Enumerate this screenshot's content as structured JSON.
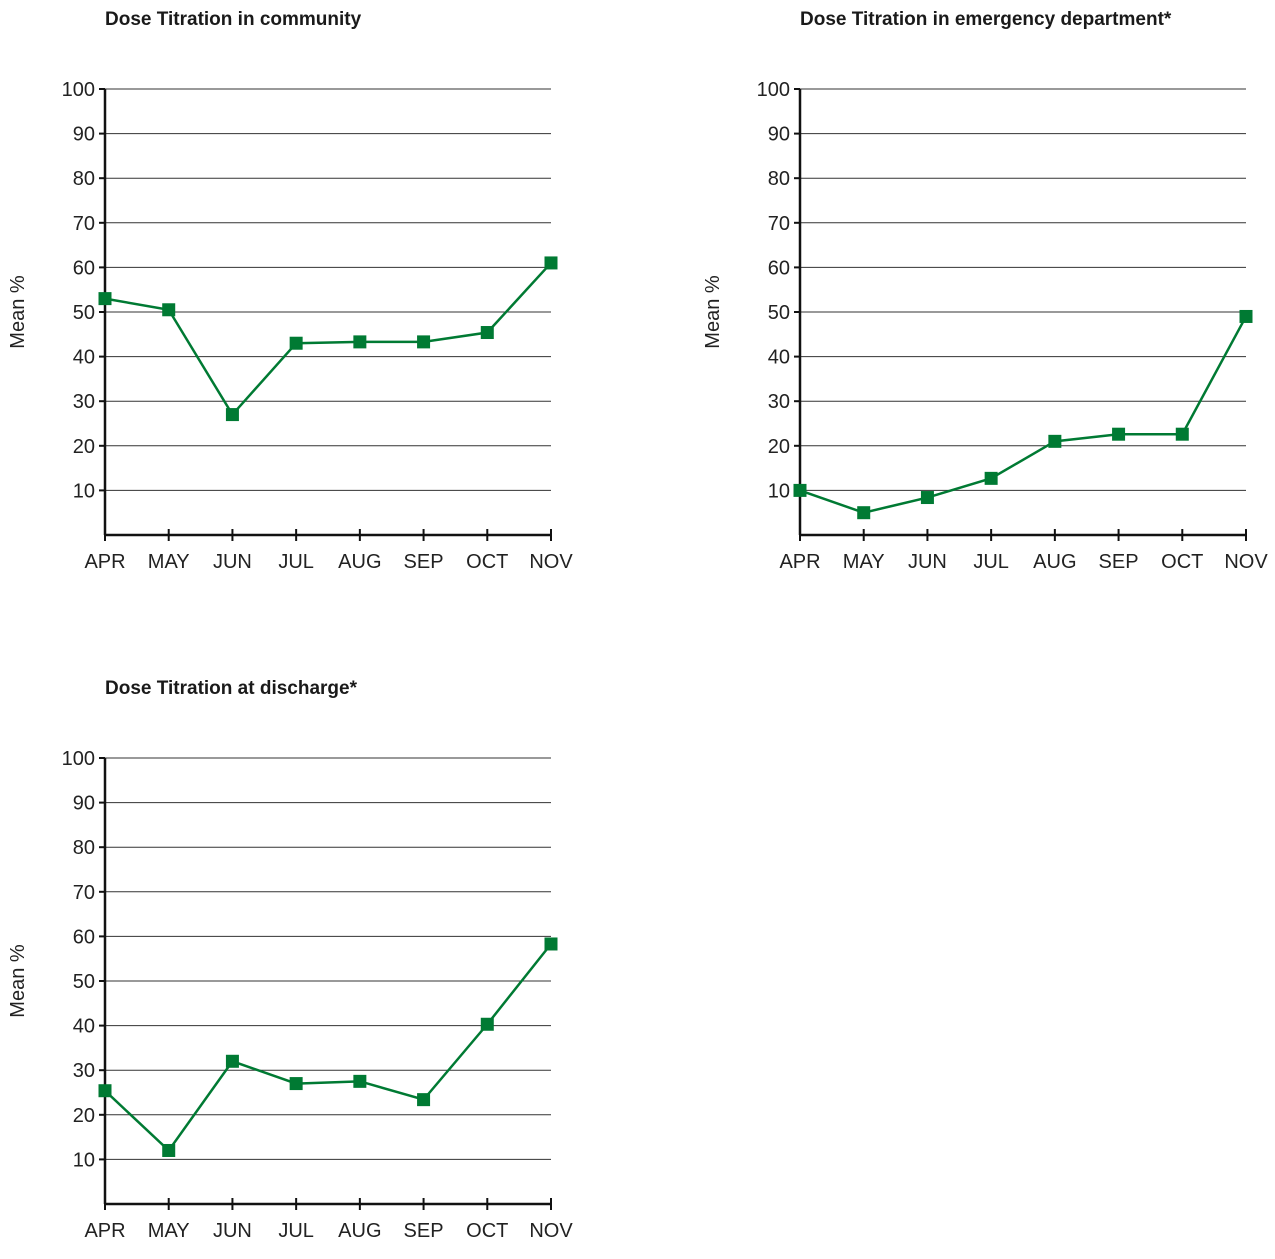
{
  "chart_data": [
    {
      "type": "line",
      "title": "Dose Titration in community",
      "ylabel": "Mean %",
      "categories": [
        "APR",
        "MAY",
        "JUN",
        "JUL",
        "AUG",
        "SEP",
        "OCT",
        "NOV"
      ],
      "series": [
        {
          "values": [
            53,
            50.5,
            27,
            43,
            43.3,
            43.3,
            45.4,
            61
          ]
        }
      ],
      "yticks": [
        10,
        20,
        30,
        40,
        50,
        60,
        70,
        80,
        90,
        100
      ],
      "ylim": [
        0,
        100
      ],
      "grid": true,
      "color": "#007a33"
    },
    {
      "type": "line",
      "title": "Dose Titration in emergency department*",
      "ylabel": "Mean %",
      "categories": [
        "APR",
        "MAY",
        "JUN",
        "JUL",
        "AUG",
        "SEP",
        "OCT",
        "NOV"
      ],
      "series": [
        {
          "values": [
            10,
            5,
            8.4,
            12.7,
            21,
            22.6,
            22.6,
            49
          ]
        }
      ],
      "yticks": [
        10,
        20,
        30,
        40,
        50,
        60,
        70,
        80,
        90,
        100
      ],
      "ylim": [
        0,
        100
      ],
      "grid": true,
      "color": "#007a33"
    },
    {
      "type": "line",
      "title": "Dose Titration at discharge*",
      "ylabel": "Mean %",
      "categories": [
        "APR",
        "MAY",
        "JUN",
        "JUL",
        "AUG",
        "SEP",
        "OCT",
        "NOV"
      ],
      "series": [
        {
          "values": [
            25.4,
            12,
            32,
            27,
            27.5,
            23.4,
            40.3,
            58.3
          ]
        }
      ],
      "yticks": [
        10,
        20,
        30,
        40,
        50,
        60,
        70,
        80,
        90,
        100
      ],
      "ylim": [
        0,
        100
      ],
      "grid": true,
      "color": "#007a33"
    }
  ]
}
